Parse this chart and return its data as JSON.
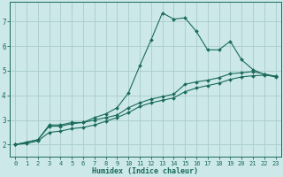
{
  "title": "",
  "xlabel": "Humidex (Indice chaleur)",
  "bg_color": "#cce8e8",
  "grid_color": "#aacccc",
  "line_color": "#1a6b5a",
  "xlim": [
    -0.5,
    23.5
  ],
  "ylim": [
    1.5,
    7.8
  ],
  "yticks": [
    2,
    3,
    4,
    5,
    6,
    7
  ],
  "xticks": [
    0,
    1,
    2,
    3,
    4,
    5,
    6,
    7,
    8,
    9,
    10,
    11,
    12,
    13,
    14,
    15,
    16,
    17,
    18,
    19,
    20,
    21,
    22,
    23
  ],
  "line1_x": [
    0,
    1,
    2,
    3,
    4,
    5,
    6,
    7,
    8,
    9,
    10,
    11,
    12,
    13,
    14,
    15,
    16,
    17,
    18,
    19,
    20,
    21,
    22,
    23
  ],
  "line1_y": [
    2.0,
    2.1,
    2.2,
    2.8,
    2.8,
    2.9,
    2.9,
    3.1,
    3.25,
    3.5,
    4.1,
    5.2,
    6.25,
    7.35,
    7.1,
    7.15,
    6.6,
    5.85,
    5.85,
    6.2,
    5.45,
    5.05,
    4.85,
    4.75
  ],
  "line2_x": [
    0,
    1,
    2,
    3,
    4,
    5,
    6,
    7,
    8,
    9,
    10,
    11,
    12,
    13,
    14,
    15,
    16,
    17,
    18,
    19,
    20,
    21,
    22,
    23
  ],
  "line2_y": [
    2.0,
    2.1,
    2.2,
    2.75,
    2.75,
    2.85,
    2.9,
    3.0,
    3.1,
    3.2,
    3.5,
    3.7,
    3.85,
    3.95,
    4.05,
    4.45,
    4.55,
    4.62,
    4.72,
    4.88,
    4.92,
    4.97,
    4.87,
    4.78
  ],
  "line3_x": [
    0,
    1,
    2,
    3,
    4,
    5,
    6,
    7,
    8,
    9,
    10,
    11,
    12,
    13,
    14,
    15,
    16,
    17,
    18,
    19,
    20,
    21,
    22,
    23
  ],
  "line3_y": [
    2.0,
    2.05,
    2.15,
    2.5,
    2.55,
    2.65,
    2.7,
    2.8,
    2.95,
    3.1,
    3.3,
    3.55,
    3.7,
    3.8,
    3.9,
    4.15,
    4.3,
    4.4,
    4.5,
    4.65,
    4.75,
    4.8,
    4.82,
    4.78
  ],
  "marker": "D",
  "markersize": 2.0,
  "linewidth": 0.8,
  "tick_fontsize": 5.0,
  "xlabel_fontsize": 6.0
}
